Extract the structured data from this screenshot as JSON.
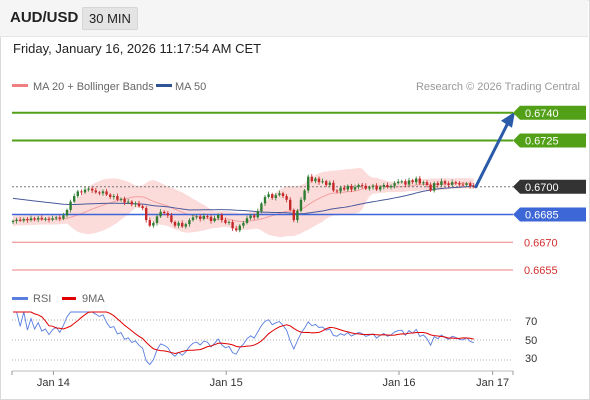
{
  "header": {
    "symbol": "AUD/USD",
    "timeframe": "30 MIN"
  },
  "datetime": "Friday, January 16, 2026 11:17:54 AM CET",
  "credit": "Research © 2026 Trading Central",
  "colors": {
    "resistance": "#52a017",
    "support": "#3d67d6",
    "minor": "#f08080",
    "current": "#333333",
    "up": "#2e7d32",
    "down": "#c62828",
    "ma50": "#4a5a9a",
    "bands": "#fbd5d5",
    "rsi": "#5a7ee0",
    "rsima": "#e00000",
    "arrow": "#2a5aa8"
  },
  "chart_data": [
    {
      "type": "line",
      "subtype": "candlestick",
      "legend": [
        {
          "name": "MA 20 + Bollinger Bands",
          "color": "#f08080"
        },
        {
          "name": "MA 50",
          "color": "#2f5597"
        }
      ],
      "legend_position": "top-left",
      "x_tick_labels": [
        "Jan 14",
        "Jan 15",
        "Jan 16",
        "Jan 17"
      ],
      "x_tick_index": [
        9,
        57,
        105,
        131
      ],
      "ylim": [
        0.6648,
        0.6748
      ],
      "candles_close": [
        0.66815,
        0.66822,
        0.66818,
        0.66826,
        0.6682,
        0.6683,
        0.66824,
        0.66832,
        0.66825,
        0.66828,
        0.66822,
        0.6683,
        0.66835,
        0.66828,
        0.66845,
        0.66875,
        0.6692,
        0.6695,
        0.66975,
        0.6697,
        0.66985,
        0.6699,
        0.6698,
        0.6697,
        0.66965,
        0.66975,
        0.66958,
        0.66945,
        0.6695,
        0.6693,
        0.66935,
        0.66915,
        0.6692,
        0.66905,
        0.6691,
        0.66895,
        0.66885,
        0.6682,
        0.6679,
        0.66805,
        0.6684,
        0.66865,
        0.66858,
        0.66845,
        0.6681,
        0.6679,
        0.66805,
        0.66785,
        0.66798,
        0.6682,
        0.66835,
        0.6684,
        0.66826,
        0.66842,
        0.66838,
        0.66815,
        0.6683,
        0.66848,
        0.6682,
        0.66805,
        0.6681,
        0.66775,
        0.66765,
        0.6679,
        0.66805,
        0.6683,
        0.66845,
        0.66835,
        0.66868,
        0.6691,
        0.66945,
        0.6696,
        0.6694,
        0.66955,
        0.66965,
        0.6695,
        0.6693,
        0.66875,
        0.6682,
        0.6687,
        0.6693,
        0.6698,
        0.67055,
        0.6703,
        0.67045,
        0.67025,
        0.6703,
        0.6701,
        0.67022,
        0.6698,
        0.66975,
        0.66995,
        0.66985,
        0.67005,
        0.66985,
        0.66998,
        0.6701,
        0.67005,
        0.6699,
        0.66998,
        0.67005,
        0.66985,
        0.67,
        0.6701,
        0.66998,
        0.67005,
        0.6702,
        0.67028,
        0.6703,
        0.67012,
        0.67035,
        0.67025,
        0.67045,
        0.67018,
        0.67025,
        0.6701,
        0.6698,
        0.6702,
        0.6701,
        0.6703,
        0.67018,
        0.6701,
        0.67025,
        0.6702,
        0.67012,
        0.6701,
        0.67018,
        0.67005,
        0.67
      ],
      "levels": [
        {
          "label": "0.6740",
          "value": 0.674,
          "role": "resistance"
        },
        {
          "label": "0.6725",
          "value": 0.6725,
          "role": "resistance"
        },
        {
          "label": "0.6700",
          "value": 0.67,
          "role": "current"
        },
        {
          "label": "0.6685",
          "value": 0.6685,
          "role": "support"
        },
        {
          "label": "0.6670",
          "value": 0.667,
          "role": "minor"
        },
        {
          "label": "0.6655",
          "value": 0.6655,
          "role": "minor"
        }
      ],
      "projection": {
        "from": 0.67,
        "to": 0.674
      }
    },
    {
      "type": "line",
      "legend": [
        {
          "name": "RSI",
          "color": "#5a7ee0"
        },
        {
          "name": "9MA",
          "color": "#e00000"
        }
      ],
      "y_tick_labels": [
        "70",
        "50",
        "30"
      ],
      "ylim": [
        20,
        80
      ],
      "grid": "dotted at 30, 50, 70"
    }
  ]
}
